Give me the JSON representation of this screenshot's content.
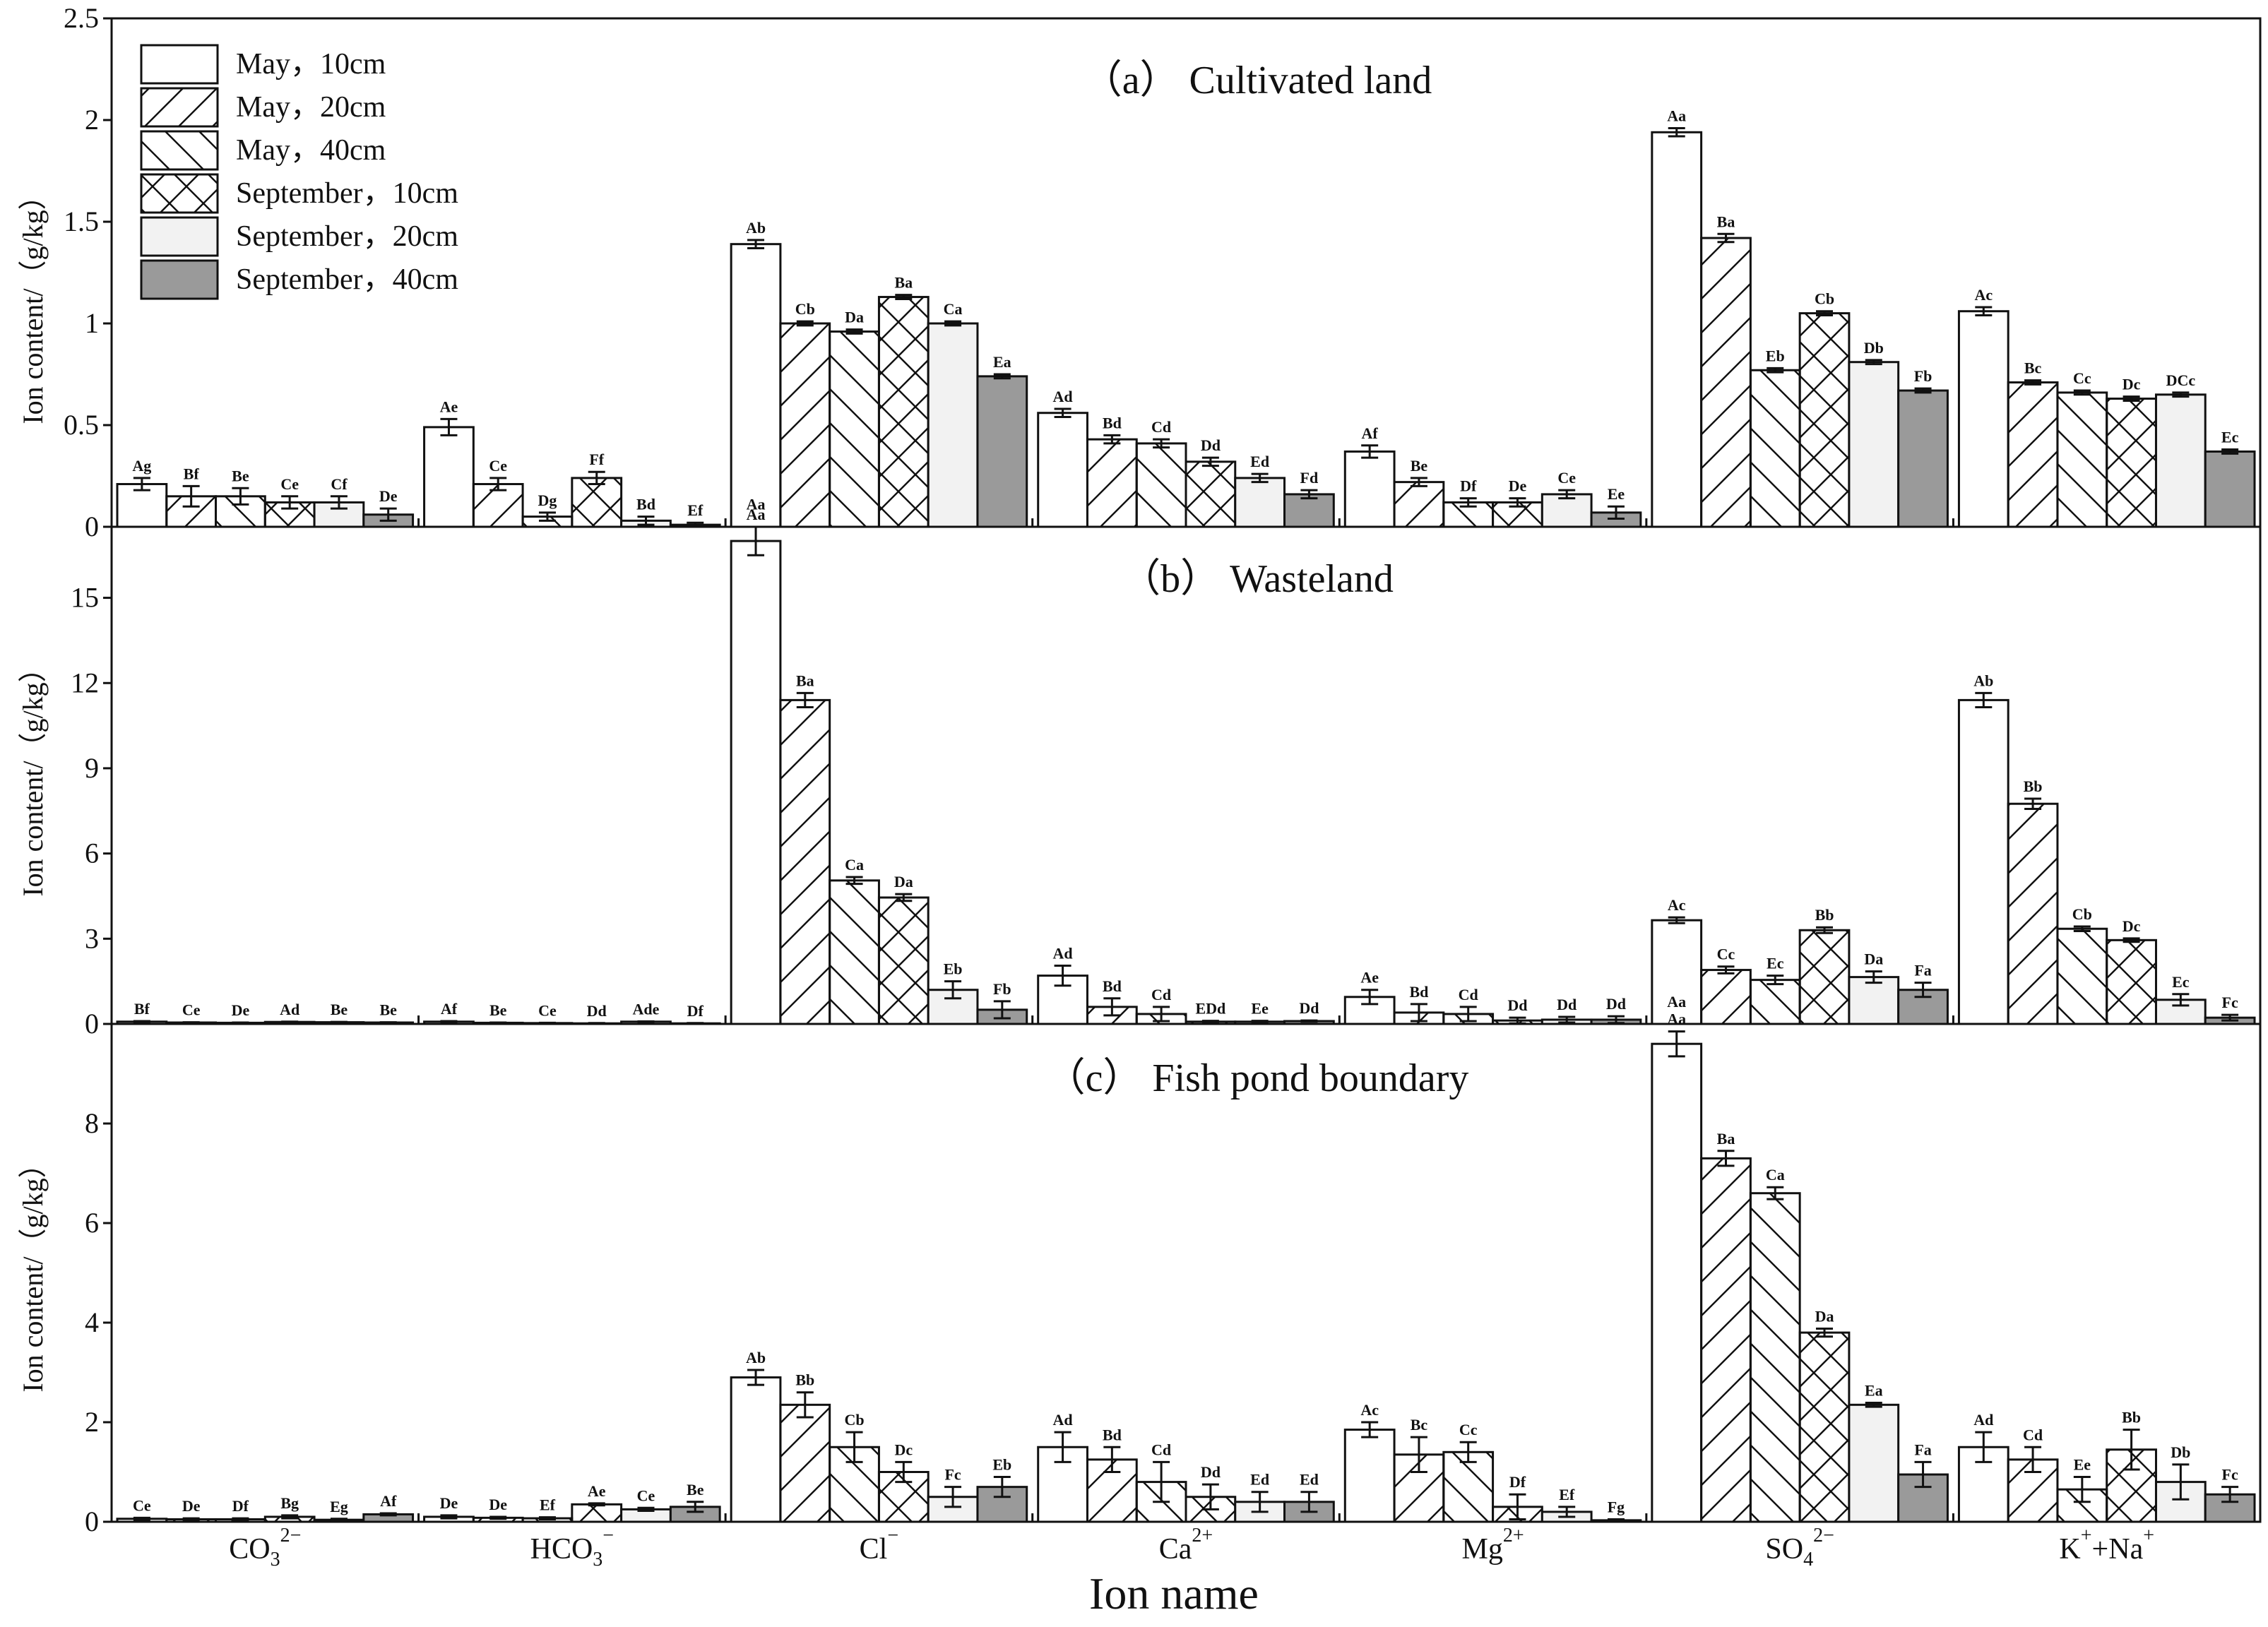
{
  "chart_data": [
    {
      "type": "bar",
      "title": "（a） Cultivated land",
      "ylabel": "Ion content/（g/kg）",
      "ylim": [
        0,
        2.5
      ],
      "yticks": [
        0,
        0.5,
        1,
        1.5,
        2,
        2.5
      ],
      "ytick_labels": [
        "0",
        "0.5",
        "1",
        "1.5",
        "2",
        "2.5"
      ],
      "series": [
        {
          "name": "May，10cm",
          "values": [
            0.21,
            0.49,
            1.39,
            0.56,
            0.37,
            1.94,
            1.06
          ],
          "errors": [
            0.03,
            0.04,
            0.02,
            0.02,
            0.03,
            0.02,
            0.02
          ],
          "letters": [
            "Ag",
            "Ae",
            "Ab",
            "Ad",
            "Af",
            "Aa",
            "Ac"
          ]
        },
        {
          "name": "May，20cm",
          "values": [
            0.15,
            0.21,
            1.0,
            0.43,
            0.22,
            1.42,
            0.71
          ],
          "errors": [
            0.05,
            0.03,
            0.01,
            0.02,
            0.02,
            0.02,
            0.01
          ],
          "letters": [
            "Bf",
            "Ce",
            "Cb",
            "Bd",
            "Be",
            "Ba",
            "Bc"
          ]
        },
        {
          "name": "May，40cm",
          "values": [
            0.15,
            0.05,
            0.96,
            0.41,
            0.12,
            0.77,
            0.66
          ],
          "errors": [
            0.04,
            0.02,
            0.01,
            0.02,
            0.02,
            0.01,
            0.01
          ],
          "letters": [
            "Be",
            "Dg",
            "Da",
            "Cd",
            "Df",
            "Eb",
            "Cc"
          ]
        },
        {
          "name": "September，10cm",
          "values": [
            0.12,
            0.24,
            1.13,
            0.32,
            0.12,
            1.05,
            0.63
          ],
          "errors": [
            0.03,
            0.03,
            0.01,
            0.02,
            0.02,
            0.01,
            0.01
          ],
          "letters": [
            "Ce",
            "Ff",
            "Ba",
            "Dd",
            "De",
            "Cb",
            "Dc"
          ]
        },
        {
          "name": "September，20cm",
          "values": [
            0.12,
            0.03,
            1.0,
            0.24,
            0.16,
            0.81,
            0.65
          ],
          "errors": [
            0.03,
            0.02,
            0.01,
            0.02,
            0.02,
            0.01,
            0.01
          ],
          "letters": [
            "Cf",
            "Bd",
            "Ca",
            "Ed",
            "Ce",
            "Db",
            "DCc"
          ]
        },
        {
          "name": "September，40cm",
          "values": [
            0.06,
            0.01,
            0.74,
            0.16,
            0.07,
            0.67,
            0.37
          ],
          "errors": [
            0.03,
            0.01,
            0.01,
            0.02,
            0.03,
            0.01,
            0.01
          ],
          "letters": [
            "De",
            "Ef",
            "Ea",
            "Fd",
            "Ee",
            "Fb",
            "Ec"
          ]
        }
      ],
      "annotations": [
        {
          "text": "Aa",
          "category_index": 2,
          "series_index": 0,
          "y": 0.03
        }
      ]
    },
    {
      "type": "bar",
      "title": "（b） Wasteland",
      "ylabel": "Ion content/（g/kg）",
      "ylim": [
        0,
        17.5
      ],
      "yticks": [
        0,
        3,
        6,
        9,
        12,
        15
      ],
      "ytick_labels": [
        "0",
        "3",
        "6",
        "9",
        "12",
        "15"
      ],
      "series": [
        {
          "name": "May，10cm",
          "values": [
            0.08,
            0.08,
            17.0,
            1.7,
            0.95,
            3.65,
            11.4
          ],
          "errors": [
            0.02,
            0.02,
            0.5,
            0.35,
            0.25,
            0.1,
            0.25
          ],
          "letters": [
            "Bf",
            "Af",
            "Aa",
            "Ad",
            "Ae",
            "Ac",
            "Ab"
          ]
        },
        {
          "name": "May，20cm",
          "values": [
            0.05,
            0.04,
            11.4,
            0.6,
            0.4,
            1.9,
            7.75
          ],
          "errors": [
            0.01,
            0.01,
            0.25,
            0.3,
            0.3,
            0.12,
            0.18
          ],
          "letters": [
            "Ce",
            "Be",
            "Ba",
            "Bd",
            "Bd",
            "Cc",
            "Bb"
          ]
        },
        {
          "name": "May，40cm",
          "values": [
            0.04,
            0.03,
            5.05,
            0.35,
            0.35,
            1.55,
            3.35
          ],
          "errors": [
            0.01,
            0.01,
            0.12,
            0.25,
            0.25,
            0.15,
            0.08
          ],
          "letters": [
            "De",
            "Ce",
            "Ca",
            "Cd",
            "Cd",
            "Ec",
            "Cb"
          ]
        },
        {
          "name": "September，10cm",
          "values": [
            0.07,
            0.02,
            4.45,
            0.08,
            0.12,
            3.3,
            2.95
          ],
          "errors": [
            0.01,
            0.01,
            0.12,
            0.03,
            0.1,
            0.1,
            0.06
          ],
          "letters": [
            "Ad",
            "Dd",
            "Da",
            "EDd",
            "Dd",
            "Bb",
            "Dc"
          ]
        },
        {
          "name": "September，20cm",
          "values": [
            0.06,
            0.08,
            1.2,
            0.08,
            0.15,
            1.65,
            0.85
          ],
          "errors": [
            0.01,
            0.01,
            0.3,
            0.03,
            0.1,
            0.2,
            0.2
          ],
          "letters": [
            "Be",
            "Ade",
            "Eb",
            "Ee",
            "Dd",
            "Da",
            "Ec"
          ]
        },
        {
          "name": "September，40cm",
          "values": [
            0.05,
            0.02,
            0.5,
            0.1,
            0.15,
            1.2,
            0.22
          ],
          "errors": [
            0.01,
            0.01,
            0.3,
            0.02,
            0.12,
            0.25,
            0.1
          ],
          "letters": [
            "Be",
            "Df",
            "Fb",
            "Dd",
            "Dd",
            "Fa",
            "Fc"
          ]
        }
      ],
      "annotations": [
        {
          "text": "Aa",
          "category_index": 5,
          "series_index": 0,
          "y": 0.2
        }
      ]
    },
    {
      "type": "bar",
      "title": "（c） Fish pond boundary",
      "ylabel": "Ion content/（g/kg）",
      "ylim": [
        0,
        10
      ],
      "yticks": [
        0,
        2,
        4,
        6,
        8
      ],
      "ytick_labels": [
        "0",
        "2",
        "4",
        "6",
        "8"
      ],
      "series": [
        {
          "name": "May，10cm",
          "values": [
            0.06,
            0.1,
            2.9,
            1.5,
            1.85,
            9.6,
            1.5
          ],
          "errors": [
            0.02,
            0.03,
            0.15,
            0.3,
            0.15,
            0.25,
            0.3
          ],
          "letters": [
            "Ce",
            "De",
            "Ab",
            "Ad",
            "Ac",
            "Aa",
            "Ad"
          ]
        },
        {
          "name": "May，20cm",
          "values": [
            0.05,
            0.08,
            2.35,
            1.25,
            1.35,
            7.3,
            1.25
          ],
          "errors": [
            0.02,
            0.02,
            0.25,
            0.25,
            0.35,
            0.15,
            0.25
          ],
          "letters": [
            "De",
            "De",
            "Bb",
            "Bd",
            "Bc",
            "Ba",
            "Cd"
          ]
        },
        {
          "name": "May，40cm",
          "values": [
            0.05,
            0.07,
            1.5,
            0.8,
            1.4,
            6.6,
            0.65
          ],
          "errors": [
            0.02,
            0.02,
            0.3,
            0.4,
            0.2,
            0.12,
            0.25
          ],
          "letters": [
            "Df",
            "Ef",
            "Cb",
            "Cd",
            "Cc",
            "Ca",
            "Ee"
          ]
        },
        {
          "name": "September，10cm",
          "values": [
            0.1,
            0.35,
            1.0,
            0.5,
            0.3,
            3.8,
            1.45
          ],
          "errors": [
            0.03,
            0.02,
            0.2,
            0.25,
            0.25,
            0.08,
            0.4
          ],
          "letters": [
            "Bg",
            "Ae",
            "Dc",
            "Dd",
            "Df",
            "Da",
            "Bb"
          ]
        },
        {
          "name": "September，20cm",
          "values": [
            0.04,
            0.25,
            0.5,
            0.4,
            0.2,
            2.35,
            0.8
          ],
          "errors": [
            0.02,
            0.03,
            0.2,
            0.2,
            0.1,
            0.04,
            0.35
          ],
          "letters": [
            "Eg",
            "Ce",
            "Fc",
            "Ed",
            "Ef",
            "Ea",
            "Db"
          ]
        },
        {
          "name": "September，40cm",
          "values": [
            0.15,
            0.3,
            0.7,
            0.4,
            0.03,
            0.95,
            0.55
          ],
          "errors": [
            0.02,
            0.1,
            0.2,
            0.2,
            0.02,
            0.25,
            0.15
          ],
          "letters": [
            "Af",
            "Be",
            "Eb",
            "Ed",
            "Fg",
            "Fa",
            "Fc"
          ]
        }
      ]
    }
  ],
  "categories": [
    {
      "base": "CO",
      "sub": "3",
      "sup": "2−"
    },
    {
      "base": "HCO",
      "sub": "3",
      "sup": "−"
    },
    {
      "base": "Cl",
      "sub": "",
      "sup": "−"
    },
    {
      "base": "Ca",
      "sub": "",
      "sup": "2+"
    },
    {
      "base": "Mg",
      "sub": "",
      "sup": "2+"
    },
    {
      "base": "SO",
      "sub": "4",
      "sup": "2−"
    },
    {
      "base": "K",
      "sub": "",
      "sup": "+",
      "base2": "+Na",
      "sup2": "+"
    }
  ],
  "xlabel": "Ion name",
  "series_styles": [
    {
      "fill": "#ffffff",
      "pattern": "none"
    },
    {
      "fill": "#ffffff",
      "pattern": "forward"
    },
    {
      "fill": "#ffffff",
      "pattern": "back"
    },
    {
      "fill": "#ffffff",
      "pattern": "cross"
    },
    {
      "fill": "#f2f2f2",
      "pattern": "none"
    },
    {
      "fill": "#9a9a9a",
      "pattern": "none"
    }
  ],
  "colors": {
    "stroke": "#111111",
    "background": "#ffffff"
  }
}
